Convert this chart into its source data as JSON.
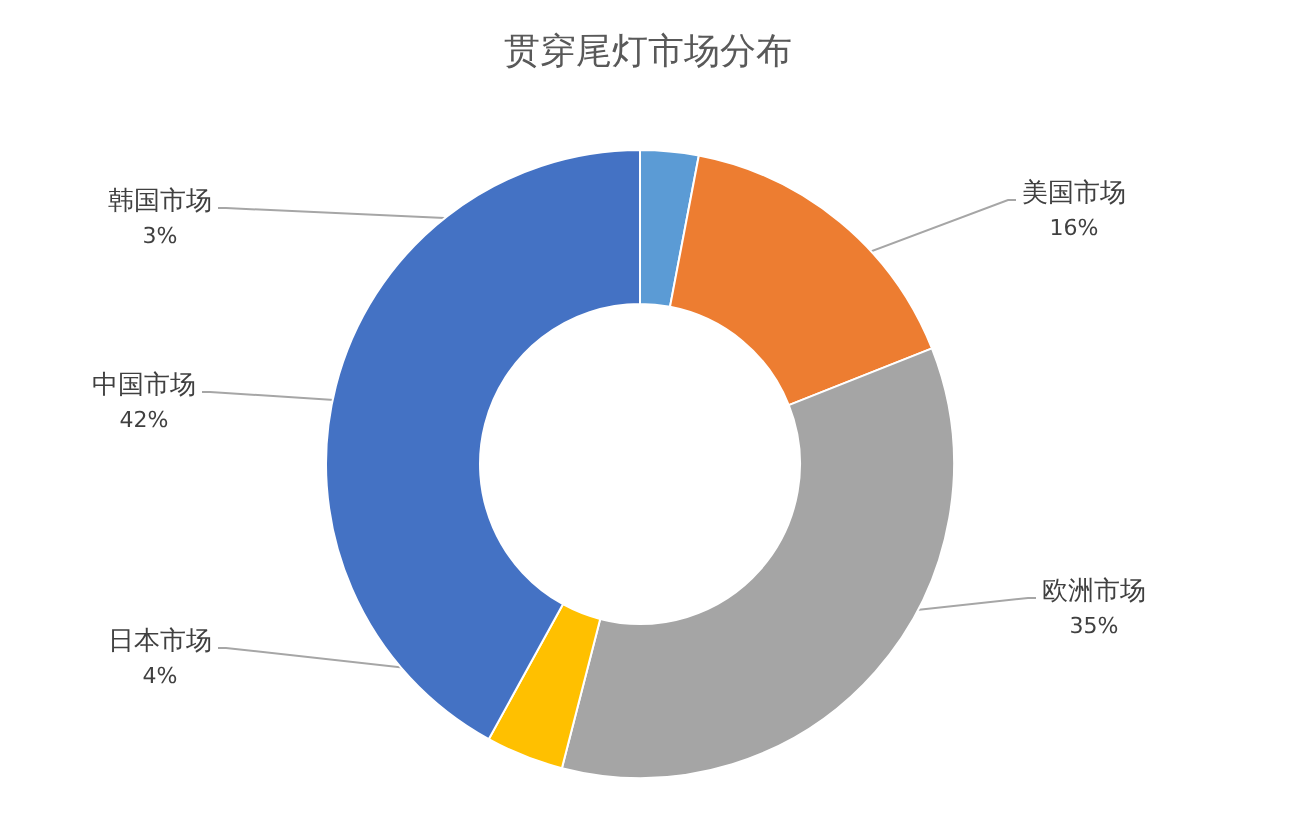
{
  "chart_data": {
    "type": "donut",
    "title": "贯穿尾灯市场分布",
    "categories": [
      "韩国市场",
      "美国市场",
      "欧洲市场",
      "日本市场",
      "中国市场"
    ],
    "values": [
      3,
      16,
      35,
      4,
      42
    ],
    "colors": [
      "#5b9bd5",
      "#ed7d31",
      "#a5a5a5",
      "#ffc000",
      "#4472c4"
    ],
    "value_labels": [
      "3%",
      "16%",
      "35%",
      "4%",
      "42%"
    ]
  }
}
